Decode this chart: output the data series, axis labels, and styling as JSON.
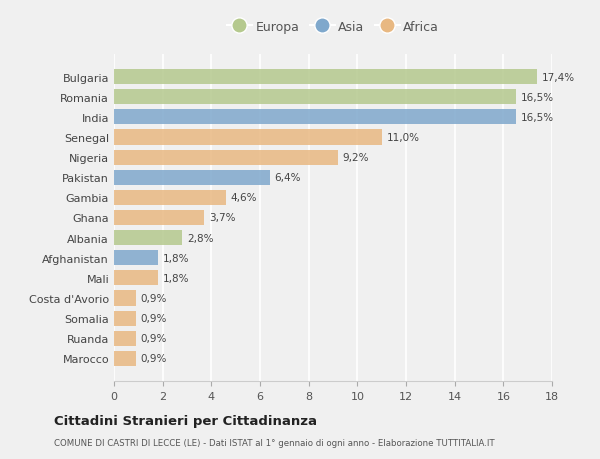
{
  "categories": [
    "Marocco",
    "Ruanda",
    "Somalia",
    "Costa d'Avorio",
    "Mali",
    "Afghanistan",
    "Albania",
    "Ghana",
    "Gambia",
    "Pakistan",
    "Nigeria",
    "Senegal",
    "India",
    "Romania",
    "Bulgaria"
  ],
  "values": [
    0.9,
    0.9,
    0.9,
    0.9,
    1.8,
    1.8,
    2.8,
    3.7,
    4.6,
    6.4,
    9.2,
    11.0,
    16.5,
    16.5,
    17.4
  ],
  "labels": [
    "0,9%",
    "0,9%",
    "0,9%",
    "0,9%",
    "1,8%",
    "1,8%",
    "2,8%",
    "3,7%",
    "4,6%",
    "6,4%",
    "9,2%",
    "11,0%",
    "16,5%",
    "16,5%",
    "17,4%"
  ],
  "continents": [
    "Africa",
    "Africa",
    "Africa",
    "Africa",
    "Africa",
    "Asia",
    "Europa",
    "Africa",
    "Africa",
    "Asia",
    "Africa",
    "Africa",
    "Asia",
    "Europa",
    "Europa"
  ],
  "colors": {
    "Europa": "#b5c98e",
    "Asia": "#7fa8cc",
    "Africa": "#e8b882"
  },
  "legend_labels": [
    "Europa",
    "Asia",
    "Africa"
  ],
  "title": "Cittadini Stranieri per Cittadinanza",
  "subtitle": "COMUNE DI CASTRI DI LECCE (LE) - Dati ISTAT al 1° gennaio di ogni anno - Elaborazione TUTTITALIA.IT",
  "xlim": [
    0,
    18
  ],
  "xticks": [
    0,
    2,
    4,
    6,
    8,
    10,
    12,
    14,
    16,
    18
  ],
  "background_color": "#f0f0f0",
  "plot_bg_color": "#f0f0f0",
  "grid_color": "#ffffff",
  "bar_height": 0.75
}
